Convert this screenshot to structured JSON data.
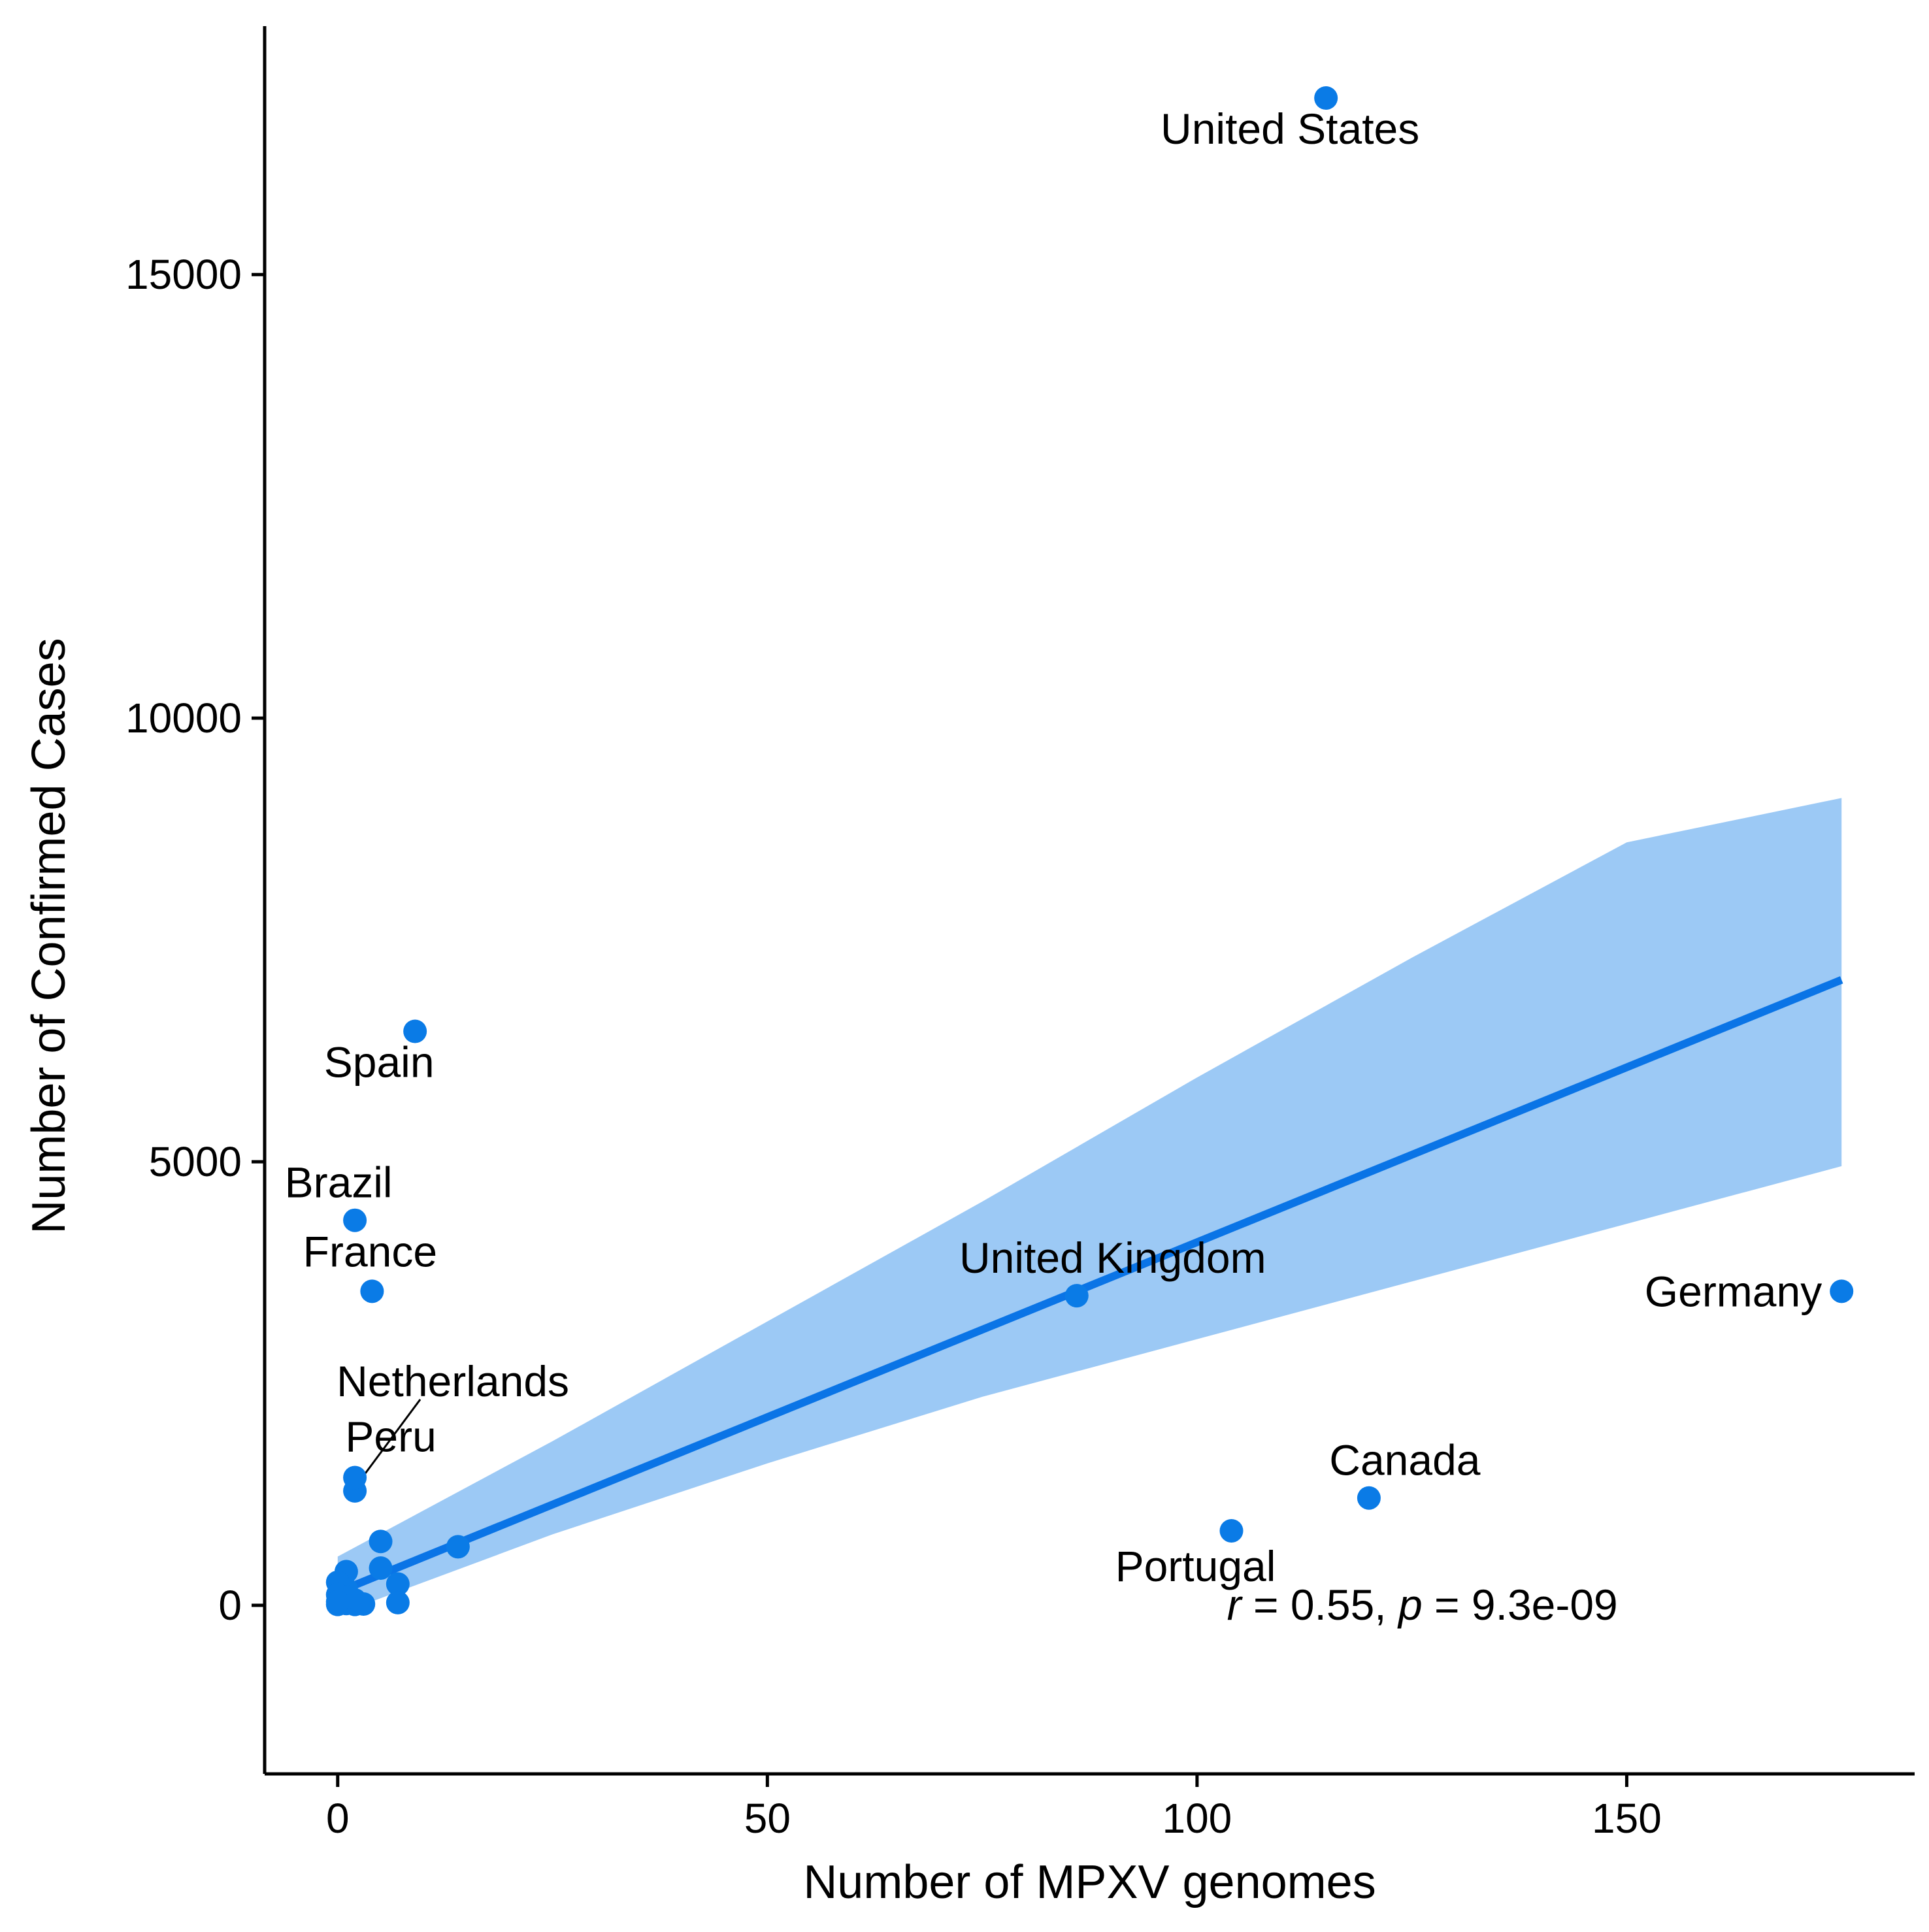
{
  "chart_data": {
    "type": "scatter",
    "xlabel": "Number of MPXV genomes",
    "ylabel": "Number of Confirmed Cases",
    "xlim": [
      -8.5,
      183.5
    ],
    "ylim": [
      -1900,
      17800
    ],
    "x_ticks": [
      0,
      50,
      100,
      150
    ],
    "x_tick_labels": [
      "0",
      "50",
      "100",
      "150"
    ],
    "y_ticks": [
      0,
      5000,
      10000,
      15000
    ],
    "y_tick_labels": [
      "0",
      "5000",
      "10000",
      "15000"
    ],
    "grid": false,
    "legend": "none",
    "colors": {
      "point": "#0a7be6",
      "line": "#0a74e6",
      "band": "#9cc9f5",
      "leader": "#000000"
    },
    "points": [
      {
        "x": 115,
        "y": 16990,
        "label": "United States"
      },
      {
        "x": 9,
        "y": 6470,
        "label": "Spain"
      },
      {
        "x": 2,
        "y": 4340,
        "label": "Brazil"
      },
      {
        "x": 4,
        "y": 3540,
        "label": "France"
      },
      {
        "x": 86,
        "y": 3490,
        "label": "United Kingdom"
      },
      {
        "x": 175,
        "y": 3540,
        "label": "Germany"
      },
      {
        "x": 2,
        "y": 1290,
        "label": "Netherlands"
      },
      {
        "x": 2,
        "y": 1440,
        "label": "Peru"
      },
      {
        "x": 120,
        "y": 1210,
        "label": "Canada"
      },
      {
        "x": 104,
        "y": 840,
        "label": "Portugal"
      },
      {
        "x": 14,
        "y": 660,
        "label": ""
      },
      {
        "x": 5,
        "y": 720,
        "label": ""
      },
      {
        "x": 5,
        "y": 420,
        "label": ""
      },
      {
        "x": 7,
        "y": 240,
        "label": ""
      },
      {
        "x": 7,
        "y": 30,
        "label": ""
      },
      {
        "x": 1,
        "y": 380,
        "label": ""
      },
      {
        "x": 1,
        "y": 180,
        "label": ""
      },
      {
        "x": 0,
        "y": 260,
        "label": ""
      },
      {
        "x": 0,
        "y": 120,
        "label": ""
      },
      {
        "x": 0,
        "y": 10,
        "label": ""
      },
      {
        "x": 1,
        "y": 20,
        "label": ""
      },
      {
        "x": 2,
        "y": 10,
        "label": ""
      },
      {
        "x": 3,
        "y": 15,
        "label": ""
      },
      {
        "x": 2,
        "y": 60,
        "label": ""
      },
      {
        "x": 1,
        "y": 90,
        "label": ""
      },
      {
        "x": 0,
        "y": 40,
        "label": ""
      }
    ],
    "regression": {
      "x": [
        0,
        175
      ],
      "y": [
        150,
        7050
      ],
      "ci_x": [
        0,
        25,
        50,
        75,
        100,
        125,
        150,
        175
      ],
      "ci_lower": [
        -100,
        800,
        1600,
        2350,
        3000,
        3650,
        4300,
        4950
      ],
      "ci_upper": [
        550,
        1850,
        3200,
        4550,
        5950,
        7300,
        8600,
        9100
      ]
    },
    "annotation": {
      "r_symbol": "r",
      "r_text": " = 0.55, ",
      "p_symbol": "p",
      "p_text": " = 9.3e-09",
      "x": 105,
      "y": 0
    }
  }
}
